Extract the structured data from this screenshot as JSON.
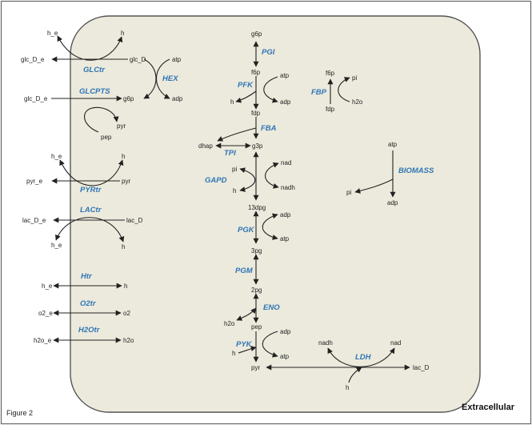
{
  "figure_label": "Figure 2",
  "compartment_label": "Extracellular",
  "colors": {
    "cell_fill": "#ECEADC",
    "cell_stroke": "#555555",
    "reaction_label": "#2E75B6",
    "metabolite_text": "#222222",
    "arrow": "#222222",
    "frame": "#666666"
  },
  "metabolites": [
    {
      "id": "m_h_e_1",
      "label": "h_e"
    },
    {
      "id": "m_h_1",
      "label": "h"
    },
    {
      "id": "m_glc_D_e",
      "label": "glc_D_e"
    },
    {
      "id": "m_glc_D",
      "label": "glc_D"
    },
    {
      "id": "m_atp_1",
      "label": "atp"
    },
    {
      "id": "m_adp_1",
      "label": "adp"
    },
    {
      "id": "m_glc_D_e_2",
      "label": "glc_D_e"
    },
    {
      "id": "m_g6p_1",
      "label": "g6p"
    },
    {
      "id": "m_pyr_1",
      "label": "pyr"
    },
    {
      "id": "m_pep_1",
      "label": "pep"
    },
    {
      "id": "m_h_e_2",
      "label": "h_e"
    },
    {
      "id": "m_h_2",
      "label": "h"
    },
    {
      "id": "m_pyr_e",
      "label": "pyr_e"
    },
    {
      "id": "m_pyr_2",
      "label": "pyr"
    },
    {
      "id": "m_lac_D_e",
      "label": "lac_D_e"
    },
    {
      "id": "m_lac_D_1",
      "label": "lac_D"
    },
    {
      "id": "m_h_e_3",
      "label": "h_e"
    },
    {
      "id": "m_h_3",
      "label": "h"
    },
    {
      "id": "m_h_e_4",
      "label": "h_e"
    },
    {
      "id": "m_h_4",
      "label": "h"
    },
    {
      "id": "m_o2_e",
      "label": "o2_e"
    },
    {
      "id": "m_o2",
      "label": "o2"
    },
    {
      "id": "m_h2o_e",
      "label": "h2o_e"
    },
    {
      "id": "m_h2o_1",
      "label": "h2o"
    },
    {
      "id": "m_g6p_2",
      "label": "g6p"
    },
    {
      "id": "m_f6p_1",
      "label": "f6p"
    },
    {
      "id": "m_atp_2",
      "label": "atp"
    },
    {
      "id": "m_h_5",
      "label": "h"
    },
    {
      "id": "m_adp_2",
      "label": "adp"
    },
    {
      "id": "m_fdp_1",
      "label": "fdp"
    },
    {
      "id": "m_dhap",
      "label": "dhap"
    },
    {
      "id": "m_g3p",
      "label": "g3p"
    },
    {
      "id": "m_pi_1",
      "label": "pi"
    },
    {
      "id": "m_nad_1",
      "label": "nad"
    },
    {
      "id": "m_h_6",
      "label": "h"
    },
    {
      "id": "m_nadh_1",
      "label": "nadh"
    },
    {
      "id": "m_13dpg",
      "label": "13dpg"
    },
    {
      "id": "m_adp_3",
      "label": "adp"
    },
    {
      "id": "m_atp_3",
      "label": "atp"
    },
    {
      "id": "m_3pg",
      "label": "3pg"
    },
    {
      "id": "m_2pg",
      "label": "2pg"
    },
    {
      "id": "m_h2o_2",
      "label": "h2o"
    },
    {
      "id": "m_pep_2",
      "label": "pep"
    },
    {
      "id": "m_adp_4",
      "label": "adp"
    },
    {
      "id": "m_h_7",
      "label": "h"
    },
    {
      "id": "m_atp_4",
      "label": "atp"
    },
    {
      "id": "m_pyr_3",
      "label": "pyr"
    },
    {
      "id": "m_f6p_2",
      "label": "f6p"
    },
    {
      "id": "m_pi_2",
      "label": "pi"
    },
    {
      "id": "m_h2o_3",
      "label": "h2o"
    },
    {
      "id": "m_fdp_2",
      "label": "fdp"
    },
    {
      "id": "m_atp_5",
      "label": "atp"
    },
    {
      "id": "m_pi_3",
      "label": "pi"
    },
    {
      "id": "m_adp_5",
      "label": "adp"
    },
    {
      "id": "m_nadh_2",
      "label": "nadh"
    },
    {
      "id": "m_nad_2",
      "label": "nad"
    },
    {
      "id": "m_lac_D_2",
      "label": "lac_D"
    },
    {
      "id": "m_h_8",
      "label": "h"
    }
  ],
  "reactions": [
    {
      "id": "r_glctr",
      "label": "GLCtr"
    },
    {
      "id": "r_hex",
      "label": "HEX"
    },
    {
      "id": "r_glcpts",
      "label": "GLCPTS"
    },
    {
      "id": "r_pyrtr",
      "label": "PYRtr"
    },
    {
      "id": "r_lactr",
      "label": "LACtr"
    },
    {
      "id": "r_htr",
      "label": "Htr"
    },
    {
      "id": "r_o2tr",
      "label": "O2tr"
    },
    {
      "id": "r_h2otr",
      "label": "H2Otr"
    },
    {
      "id": "r_pgi",
      "label": "PGI"
    },
    {
      "id": "r_pfk",
      "label": "PFK"
    },
    {
      "id": "r_fba",
      "label": "FBA"
    },
    {
      "id": "r_tpi",
      "label": "TPI"
    },
    {
      "id": "r_gapd",
      "label": "GAPD"
    },
    {
      "id": "r_pgk",
      "label": "PGK"
    },
    {
      "id": "r_pgm",
      "label": "PGM"
    },
    {
      "id": "r_eno",
      "label": "ENO"
    },
    {
      "id": "r_pyk",
      "label": "PYK"
    },
    {
      "id": "r_fbp",
      "label": "FBP"
    },
    {
      "id": "r_biomass",
      "label": "BIOMASS"
    },
    {
      "id": "r_ldh",
      "label": "LDH"
    }
  ]
}
